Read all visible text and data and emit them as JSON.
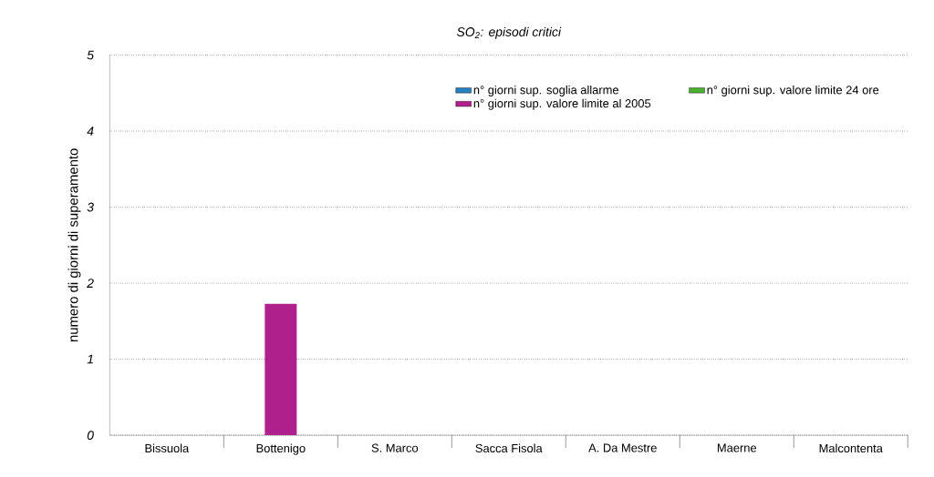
{
  "chart_data": {
    "type": "bar",
    "title": "SO$_{2}$: episodi critici",
    "ylabel": "numero di giorni di superamento",
    "categories": [
      "Bissuola",
      "Bottenigo",
      "S. Marco",
      "Sacca Fisola",
      "A. Da Mestre",
      "Maerne",
      "Malcontenta"
    ],
    "series": [
      {
        "name": "n° giorni sup. soglia allarme",
        "color": "#2a7fc0",
        "values": [
          0,
          0,
          0,
          0,
          0,
          0,
          0
        ]
      },
      {
        "name": "n° giorni sup. valore limite al 2005",
        "color": "#b0208c",
        "values": [
          0,
          1.73,
          0,
          0,
          0,
          0,
          0
        ]
      },
      {
        "name": "n° giorni sup. valore limite 24 ore",
        "color": "#4caf30",
        "values": [
          0,
          0,
          0,
          0,
          0,
          0,
          0
        ]
      }
    ],
    "ylim": [
      0,
      5
    ],
    "yticks": [
      0,
      1,
      2,
      3,
      4,
      5
    ],
    "grid": "y",
    "legend": "top right"
  }
}
